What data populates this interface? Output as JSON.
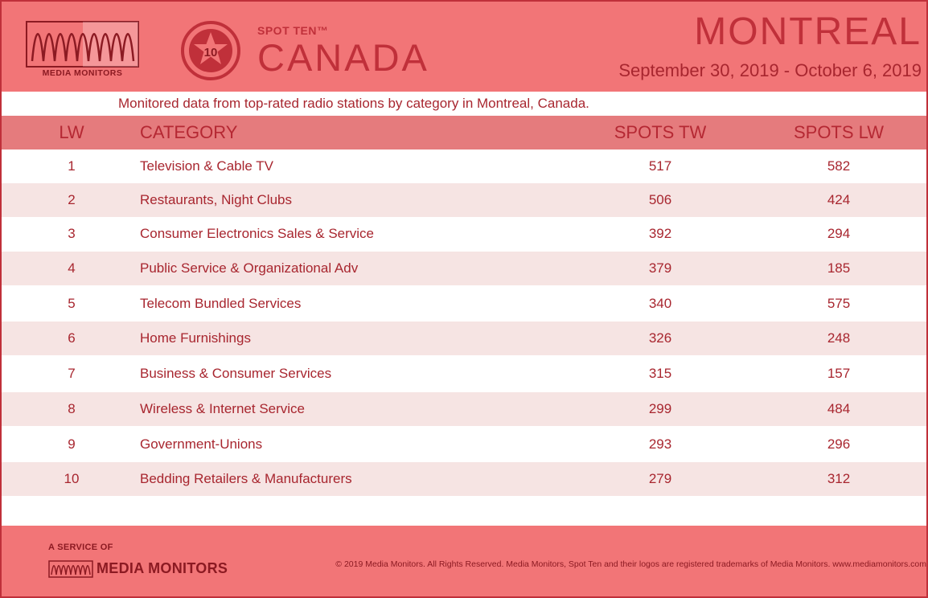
{
  "brand": {
    "logo_text": "MEDIA MONITORS",
    "spot_ten": "SPOT TEN™",
    "badge_number": "10",
    "country": "CANADA",
    "accent_color": "#c0303a",
    "header_color": "#f27577"
  },
  "report": {
    "city": "MONTREAL",
    "date_range": "September 30, 2019 - October 6, 2019",
    "subtitle": "Monitored data from top-rated radio stations by category in Montreal, Canada."
  },
  "table": {
    "headers": [
      "LW",
      "CATEGORY",
      "SPOTS TW",
      "SPOTS LW"
    ],
    "rows": [
      {
        "lw": "1",
        "category": "Television & Cable TV",
        "spots_tw": "517",
        "spots_lw": "582"
      },
      {
        "lw": "2",
        "category": "Restaurants, Night Clubs",
        "spots_tw": "506",
        "spots_lw": "424"
      },
      {
        "lw": "3",
        "category": "Consumer Electronics Sales & Service",
        "spots_tw": "392",
        "spots_lw": "294"
      },
      {
        "lw": "4",
        "category": "Public Service & Organizational Adv",
        "spots_tw": "379",
        "spots_lw": "185"
      },
      {
        "lw": "5",
        "category": "Telecom Bundled Services",
        "spots_tw": "340",
        "spots_lw": "575"
      },
      {
        "lw": "6",
        "category": "Home Furnishings",
        "spots_tw": "326",
        "spots_lw": "248"
      },
      {
        "lw": "7",
        "category": "Business & Consumer Services",
        "spots_tw": "315",
        "spots_lw": "157"
      },
      {
        "lw": "8",
        "category": "Wireless & Internet Service",
        "spots_tw": "299",
        "spots_lw": "484"
      },
      {
        "lw": "9",
        "category": "Government-Unions",
        "spots_tw": "293",
        "spots_lw": "296"
      },
      {
        "lw": "10",
        "category": "Bedding Retailers & Manufacturers",
        "spots_tw": "279",
        "spots_lw": "312"
      }
    ]
  },
  "footer": {
    "service_of": "A SERVICE OF",
    "logo_text": "MEDIA MONITORS",
    "copyright": "© 2019 Media Monitors. All Rights Reserved. Media Monitors, Spot Ten and their logos are registered trademarks of Media Monitors. www.mediamonitors.com"
  }
}
